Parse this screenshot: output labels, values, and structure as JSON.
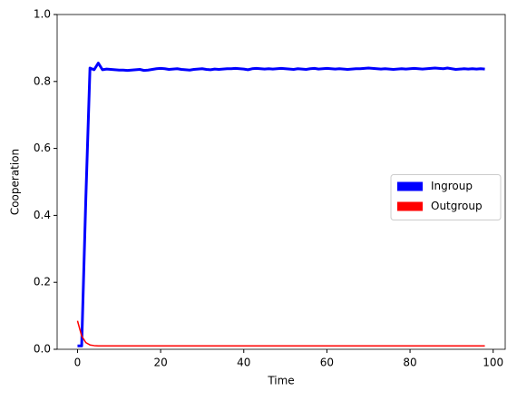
{
  "chart_data": {
    "type": "line",
    "xlabel": "Time",
    "ylabel": "Cooperation",
    "x": [
      0,
      1,
      2,
      3,
      4,
      5,
      6,
      7,
      8,
      9,
      10,
      11,
      12,
      13,
      14,
      15,
      16,
      17,
      18,
      19,
      20,
      21,
      22,
      23,
      24,
      25,
      26,
      27,
      28,
      29,
      30,
      31,
      32,
      33,
      34,
      35,
      36,
      37,
      38,
      39,
      40,
      41,
      42,
      43,
      44,
      45,
      46,
      47,
      48,
      49,
      50,
      51,
      52,
      53,
      54,
      55,
      56,
      57,
      58,
      59,
      60,
      61,
      62,
      63,
      64,
      65,
      66,
      67,
      68,
      69,
      70,
      71,
      72,
      73,
      74,
      75,
      76,
      77,
      78,
      79,
      80,
      81,
      82,
      83,
      84,
      85,
      86,
      87,
      88,
      89,
      90,
      91,
      92,
      93,
      94,
      95,
      96,
      97,
      98
    ],
    "series": [
      {
        "name": "Ingroup",
        "color": "#0000ff",
        "values": [
          0.01,
          0.01,
          0.45,
          0.84,
          0.835,
          0.855,
          0.835,
          0.837,
          0.836,
          0.835,
          0.834,
          0.834,
          0.833,
          0.834,
          0.835,
          0.836,
          0.833,
          0.834,
          0.836,
          0.838,
          0.839,
          0.838,
          0.836,
          0.837,
          0.838,
          0.836,
          0.835,
          0.834,
          0.836,
          0.837,
          0.838,
          0.836,
          0.835,
          0.837,
          0.836,
          0.837,
          0.838,
          0.838,
          0.839,
          0.838,
          0.837,
          0.835,
          0.838,
          0.839,
          0.838,
          0.837,
          0.838,
          0.837,
          0.838,
          0.839,
          0.838,
          0.837,
          0.836,
          0.838,
          0.837,
          0.836,
          0.838,
          0.839,
          0.837,
          0.838,
          0.839,
          0.838,
          0.837,
          0.838,
          0.837,
          0.836,
          0.837,
          0.838,
          0.838,
          0.839,
          0.84,
          0.839,
          0.838,
          0.837,
          0.838,
          0.837,
          0.836,
          0.837,
          0.838,
          0.837,
          0.838,
          0.839,
          0.838,
          0.837,
          0.838,
          0.839,
          0.84,
          0.839,
          0.838,
          0.84,
          0.838,
          0.836,
          0.837,
          0.838,
          0.837,
          0.838,
          0.837,
          0.838,
          0.837
        ]
      },
      {
        "name": "Outgroup",
        "color": "#ff0000",
        "values": [
          0.085,
          0.04,
          0.02,
          0.013,
          0.011,
          0.01,
          0.01,
          0.01,
          0.01,
          0.01,
          0.01,
          0.01,
          0.01,
          0.01,
          0.01,
          0.01,
          0.01,
          0.01,
          0.01,
          0.01,
          0.01,
          0.01,
          0.01,
          0.01,
          0.01,
          0.01,
          0.01,
          0.01,
          0.01,
          0.01,
          0.01,
          0.01,
          0.01,
          0.01,
          0.01,
          0.01,
          0.01,
          0.01,
          0.01,
          0.01,
          0.01,
          0.01,
          0.01,
          0.01,
          0.01,
          0.01,
          0.01,
          0.01,
          0.01,
          0.01,
          0.01,
          0.01,
          0.01,
          0.01,
          0.01,
          0.01,
          0.01,
          0.01,
          0.01,
          0.01,
          0.01,
          0.01,
          0.01,
          0.01,
          0.01,
          0.01,
          0.01,
          0.01,
          0.01,
          0.01,
          0.01,
          0.01,
          0.01,
          0.01,
          0.01,
          0.01,
          0.01,
          0.01,
          0.01,
          0.01,
          0.01,
          0.01,
          0.01,
          0.01,
          0.01,
          0.01,
          0.01,
          0.01,
          0.01,
          0.01,
          0.01,
          0.01,
          0.01,
          0.01,
          0.01,
          0.01,
          0.01,
          0.01,
          0.01
        ]
      }
    ],
    "xlim": [
      -4.9,
      102.9
    ],
    "xticks": [
      0,
      20,
      40,
      60,
      80,
      100
    ],
    "ylim": [
      0,
      1
    ],
    "yticks": [
      {
        "value": 0,
        "label": "0.0"
      },
      {
        "value": 0.2,
        "label": "0.2"
      },
      {
        "value": 0.4,
        "label": "0.4"
      },
      {
        "value": 0.6,
        "label": "0.6"
      },
      {
        "value": 0.8,
        "label": "0.8"
      },
      {
        "value": 1,
        "label": "1.0"
      }
    ],
    "legend": "center right"
  }
}
